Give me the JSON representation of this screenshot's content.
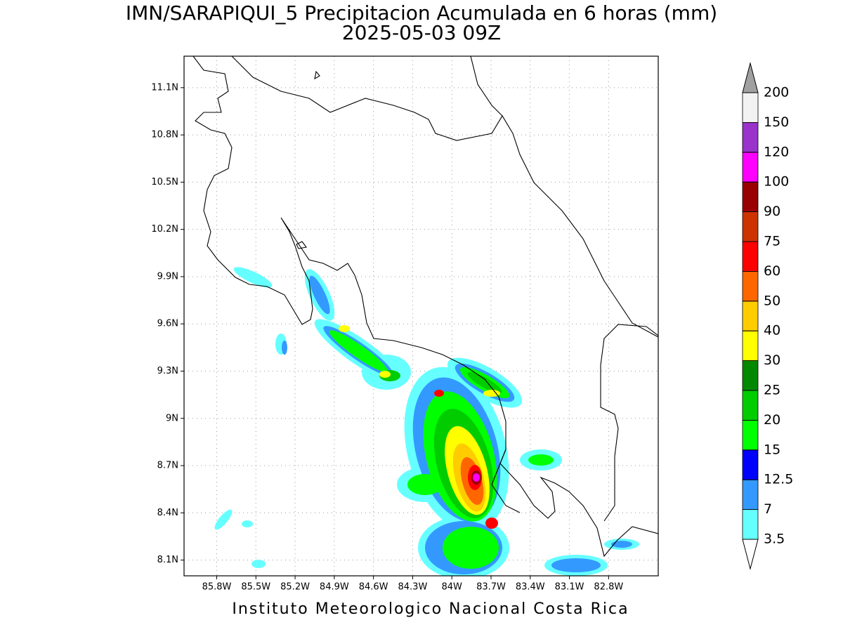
{
  "title": "IMN/SARAPIQUI_5 Precipitacion Acumulada en 6 horas (mm)",
  "subtitle": "2025-05-03 09Z",
  "map": {
    "xlim": [
      -86.05,
      -82.42
    ],
    "ylim": [
      8.0,
      11.3
    ],
    "grid": true,
    "xticks": [
      {
        "value": -85.8,
        "label": "85.8W"
      },
      {
        "value": -85.5,
        "label": "85.5W"
      },
      {
        "value": -85.2,
        "label": "85.2W"
      },
      {
        "value": -84.9,
        "label": "84.9W"
      },
      {
        "value": -84.6,
        "label": "84.6W"
      },
      {
        "value": -84.3,
        "label": "84.3W"
      },
      {
        "value": -84.0,
        "label": "84W"
      },
      {
        "value": -83.7,
        "label": "83.7W"
      },
      {
        "value": -83.4,
        "label": "83.4W"
      },
      {
        "value": -83.1,
        "label": "83.1W"
      },
      {
        "value": -82.8,
        "label": "82.8W"
      }
    ],
    "yticks": [
      {
        "value": 8.1,
        "label": "8.1N"
      },
      {
        "value": 8.4,
        "label": "8.4N"
      },
      {
        "value": 8.7,
        "label": "8.7N"
      },
      {
        "value": 9.0,
        "label": "9N"
      },
      {
        "value": 9.3,
        "label": "9.3N"
      },
      {
        "value": 9.6,
        "label": "9.6N"
      },
      {
        "value": 9.9,
        "label": "9.9N"
      },
      {
        "value": 10.2,
        "label": "10.2N"
      },
      {
        "value": 10.5,
        "label": "10.5N"
      },
      {
        "value": 10.8,
        "label": "10.8N"
      },
      {
        "value": 11.1,
        "label": "11.1N"
      }
    ]
  },
  "colorbar": {
    "levels": [
      3.5,
      7,
      12.5,
      15,
      20,
      25,
      30,
      40,
      50,
      60,
      75,
      90,
      100,
      120,
      150,
      200
    ],
    "colors": [
      "#66ffff",
      "#3399ff",
      "#0000ff",
      "#00ff00",
      "#00cc00",
      "#008800",
      "#ffff00",
      "#ffcc00",
      "#ff6600",
      "#ff0000",
      "#cc3300",
      "#990000",
      "#ff00ff",
      "#9933cc",
      "#f2f2f2"
    ],
    "under_color": "#ffffff",
    "over_color": "#a0a0a0"
  },
  "footer": "Instituto Meteorologico Nacional Costa Rica"
}
